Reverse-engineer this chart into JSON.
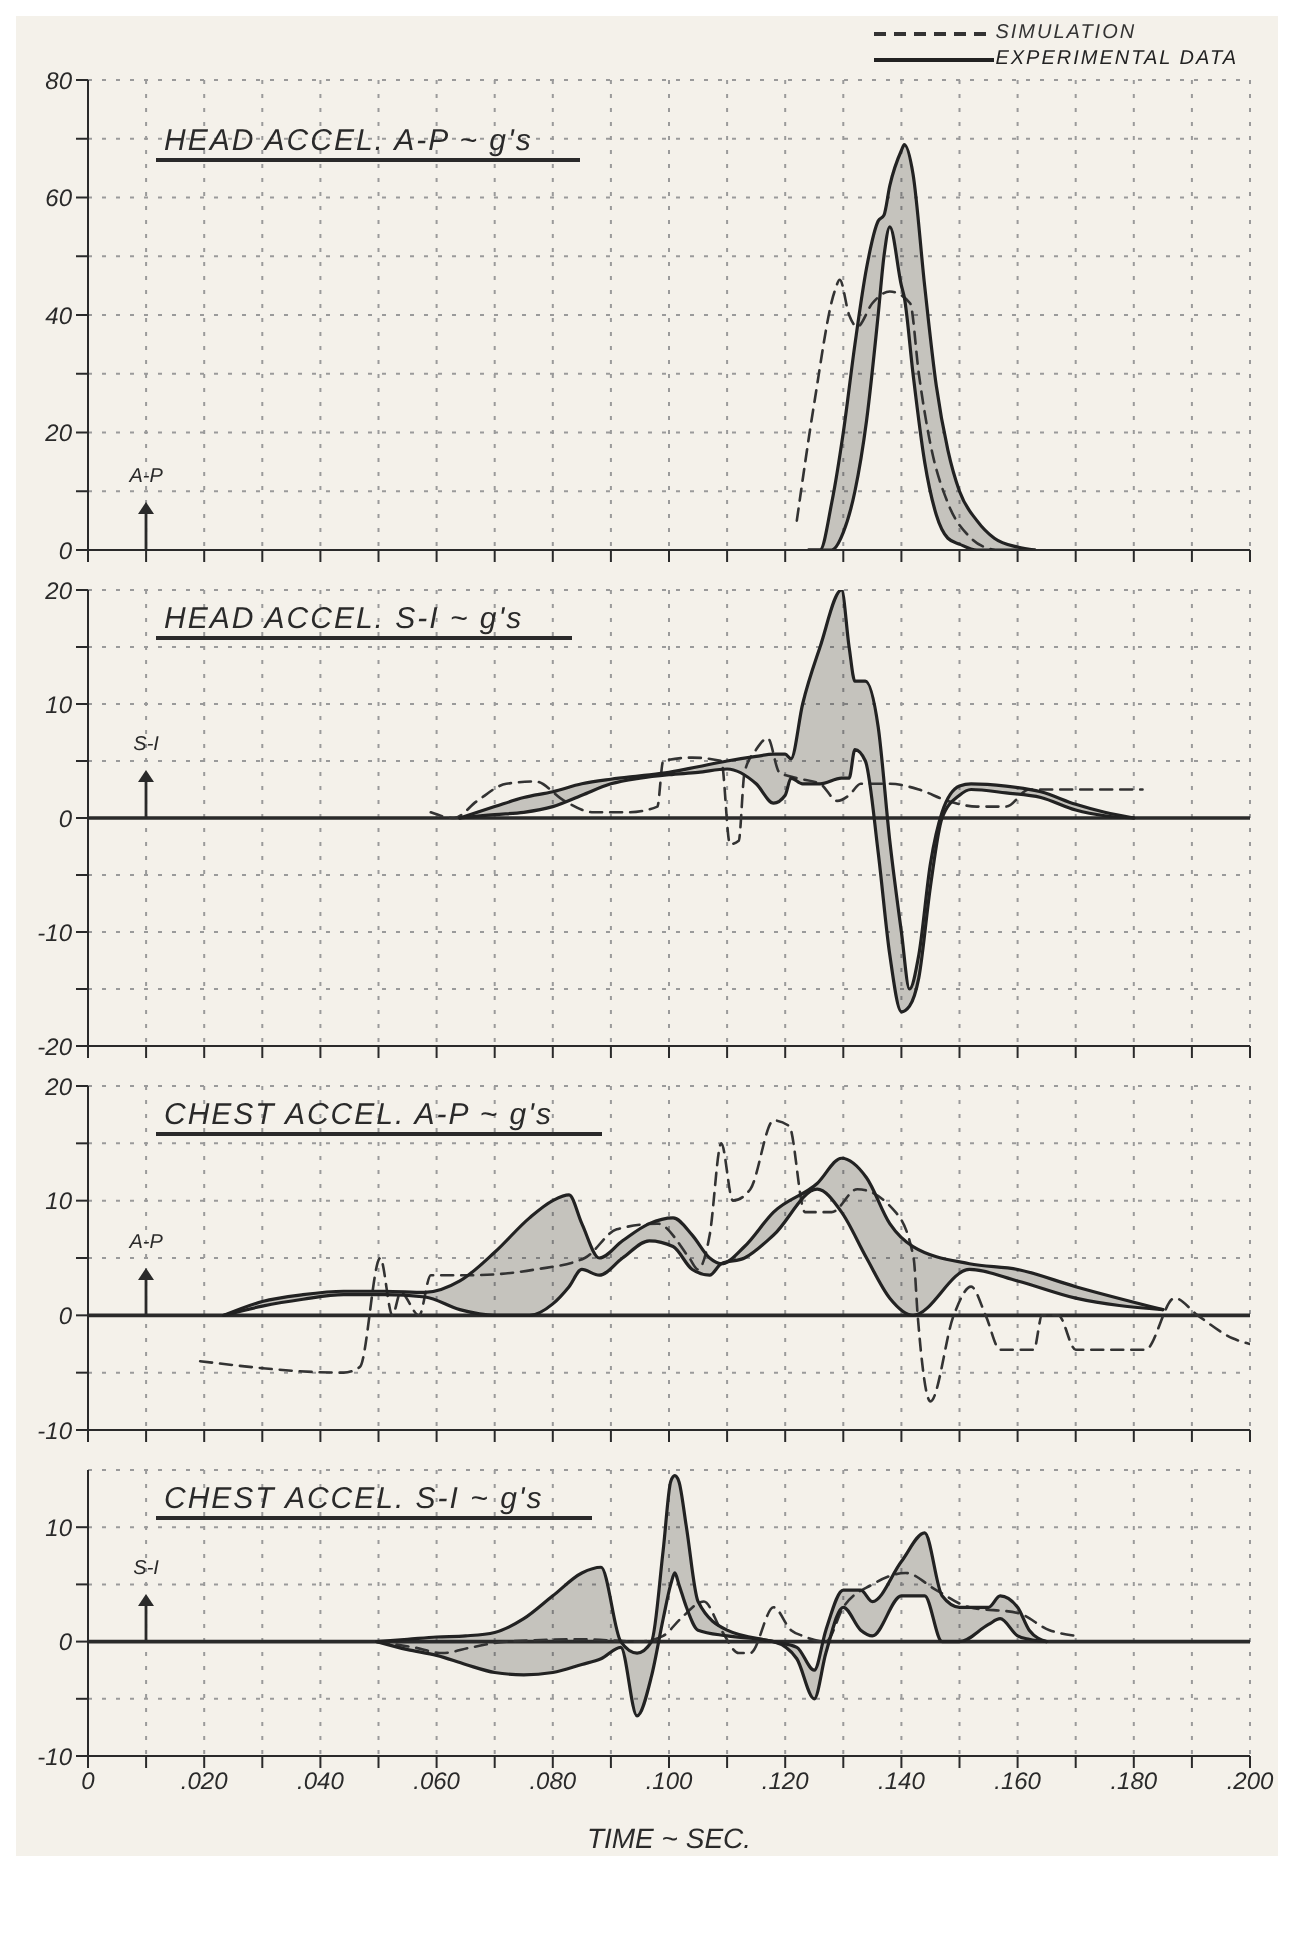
{
  "chart_data": [
    {
      "type": "line",
      "title": "HEAD ACCEL. A-P ~ g's",
      "annotations": [
        "A-P"
      ],
      "xlim": [
        0,
        0.2
      ],
      "xticks": [
        {
          "value": 0,
          "label": null
        },
        {
          "value": 0.01,
          "label": null
        },
        {
          "value": 0.02,
          "label": null
        },
        {
          "value": 0.03,
          "label": null
        },
        {
          "value": 0.04,
          "label": null
        },
        {
          "value": 0.05,
          "label": null
        },
        {
          "value": 0.06,
          "label": null
        },
        {
          "value": 0.07,
          "label": null
        },
        {
          "value": 0.08,
          "label": null
        },
        {
          "value": 0.09,
          "label": null
        },
        {
          "value": 0.1,
          "label": null
        },
        {
          "value": 0.11,
          "label": null
        },
        {
          "value": 0.12,
          "label": null
        },
        {
          "value": 0.13,
          "label": null
        },
        {
          "value": 0.14,
          "label": null
        },
        {
          "value": 0.15,
          "label": null
        },
        {
          "value": 0.16,
          "label": null
        },
        {
          "value": 0.17,
          "label": null
        },
        {
          "value": 0.18,
          "label": null
        },
        {
          "value": 0.19,
          "label": null
        },
        {
          "value": 0.2,
          "label": null
        }
      ],
      "ylim": [
        0,
        80
      ],
      "yticks": [
        0,
        {
          "value": 10,
          "label": null
        },
        20,
        {
          "value": 30,
          "label": null
        },
        40,
        {
          "value": 50,
          "label": null
        },
        60,
        {
          "value": 70,
          "label": null
        },
        80
      ],
      "grid": true,
      "tick_labels": "y",
      "legend": "top right",
      "marker": "none",
      "series": [
        {
          "name": "SIMULATION",
          "color": "#333333",
          "line_style": "dashed",
          "x": [
            0.122,
            0.125,
            0.1285,
            0.1294,
            0.131,
            0.1324,
            0.135,
            0.138,
            0.1415,
            0.143,
            0.145,
            0.148,
            0.152,
            0.156
          ],
          "values": [
            5,
            25,
            44,
            46,
            40,
            38,
            42,
            44,
            42,
            30,
            18,
            8,
            2,
            0
          ]
        },
        {
          "name": "EXPERIMENTAL DATA",
          "color": "#222222",
          "line_style": "solid",
          "x": [
            0.124,
            0.126,
            0.128,
            0.13,
            0.132,
            0.134,
            0.136,
            0.137,
            0.138,
            0.14,
            0.1405,
            0.142,
            0.144,
            0.146,
            0.148,
            0.15,
            0.153,
            0.156,
            0.16,
            0.163
          ],
          "values": [
            0,
            0,
            8,
            20,
            35,
            48,
            56,
            57,
            62,
            68,
            69,
            64,
            45,
            28,
            17,
            10,
            5,
            2,
            0.5,
            0
          ],
          "lower": [
            0,
            0,
            0,
            3,
            10,
            22,
            40,
            50,
            55,
            45,
            43,
            30,
            15,
            6,
            2,
            1,
            0,
            0,
            0,
            0
          ],
          "upper": [
            0,
            0,
            8,
            20,
            35,
            48,
            56,
            57,
            62,
            68,
            69,
            64,
            45,
            28,
            17,
            10,
            5,
            2,
            0.5,
            0
          ]
        },
        {
          "color": "#222222",
          "line_style": "solid",
          "x": [
            0.124,
            0.126,
            0.128,
            0.13,
            0.132,
            0.134,
            0.136,
            0.137,
            0.138,
            0.14,
            0.1405,
            0.142,
            0.144,
            0.146,
            0.148,
            0.15,
            0.153,
            0.156,
            0.16,
            0.163
          ],
          "values": [
            0,
            0,
            0,
            3,
            10,
            22,
            40,
            50,
            55,
            45,
            43,
            30,
            15,
            6,
            2,
            1,
            0,
            0,
            0,
            0
          ]
        }
      ]
    },
    {
      "type": "line",
      "title": "HEAD ACCEL. S-I ~ g's",
      "annotations": [
        "S-I"
      ],
      "xlim": [
        0,
        0.2
      ],
      "xticks": [
        {
          "value": 0,
          "label": null
        },
        {
          "value": 0.01,
          "label": null
        },
        {
          "value": 0.02,
          "label": null
        },
        {
          "value": 0.03,
          "label": null
        },
        {
          "value": 0.04,
          "label": null
        },
        {
          "value": 0.05,
          "label": null
        },
        {
          "value": 0.06,
          "label": null
        },
        {
          "value": 0.07,
          "label": null
        },
        {
          "value": 0.08,
          "label": null
        },
        {
          "value": 0.09,
          "label": null
        },
        {
          "value": 0.1,
          "label": null
        },
        {
          "value": 0.11,
          "label": null
        },
        {
          "value": 0.12,
          "label": null
        },
        {
          "value": 0.13,
          "label": null
        },
        {
          "value": 0.14,
          "label": null
        },
        {
          "value": 0.15,
          "label": null
        },
        {
          "value": 0.16,
          "label": null
        },
        {
          "value": 0.17,
          "label": null
        },
        {
          "value": 0.18,
          "label": null
        },
        {
          "value": 0.19,
          "label": null
        },
        {
          "value": 0.2,
          "label": null
        }
      ],
      "ylim": [
        -20,
        20
      ],
      "yticks": [
        -20,
        {
          "value": -15,
          "label": null
        },
        -10,
        {
          "value": -5,
          "label": null
        },
        0,
        {
          "value": 5,
          "label": null
        },
        10,
        {
          "value": 15,
          "label": null
        },
        20
      ],
      "grid": true,
      "tick_labels": "y",
      "marker": "none",
      "ref_lines": [
        {
          "axis": "y",
          "value": 0
        }
      ],
      "series": [
        {
          "color": "#333333",
          "line_style": "dashed",
          "x": [
            0.059,
            0.063,
            0.067,
            0.072,
            0.077,
            0.082,
            0.087,
            0.093,
            0.098,
            0.099,
            0.104,
            0.109,
            0.1105,
            0.112,
            0.113,
            0.115,
            0.117,
            0.119,
            0.122,
            0.126,
            0.129,
            0.131,
            0.133,
            0.138,
            0.143,
            0.148,
            0.153,
            0.158,
            0.162,
            0.1815
          ],
          "values": [
            0.5,
            0,
            1.5,
            3,
            3.2,
            1.5,
            0.5,
            0.5,
            1,
            5,
            5.3,
            5,
            -2.3,
            -2,
            4,
            6,
            7,
            4,
            3.5,
            3,
            1.5,
            2,
            3,
            3,
            2.5,
            1.5,
            1,
            1,
            2.5,
            2.5
          ]
        },
        {
          "color": "#222222",
          "line_style": "solid",
          "x": [
            0.064,
            0.07,
            0.075,
            0.08,
            0.085,
            0.09,
            0.095,
            0.1,
            0.105,
            0.11,
            0.115,
            0.118,
            0.12,
            0.121,
            0.123,
            0.126,
            0.1297,
            0.131,
            0.132,
            0.1338,
            0.136,
            0.138,
            0.14,
            0.1414,
            0.143,
            0.145,
            0.147,
            0.15,
            0.152,
            0.158,
            0.164,
            0.17,
            0.175,
            0.18
          ],
          "values": [
            0,
            1,
            1.8,
            2.3,
            3,
            3.4,
            3.7,
            4,
            4.5,
            5,
            5.4,
            5.6,
            5.6,
            5.2,
            10,
            15,
            20,
            15,
            12,
            12,
            8,
            -2,
            -10,
            -15,
            -12,
            -4,
            0.5,
            2.8,
            3,
            2.8,
            2.3,
            1.2,
            0.5,
            0
          ],
          "lower": [
            0,
            0.3,
            0.5,
            1,
            2,
            3,
            3.5,
            3.8,
            4,
            4.3,
            3,
            1.3,
            2,
            3.5,
            3,
            3,
            3.5,
            3.5,
            6,
            5,
            -3,
            -12,
            -17,
            -16.5,
            -14,
            -6,
            0,
            2,
            2.5,
            2.2,
            1.8,
            0.7,
            0.2,
            0
          ],
          "upper": [
            0,
            1,
            1.8,
            2.3,
            3,
            3.4,
            3.7,
            4,
            4.5,
            5,
            5.4,
            5.6,
            5.6,
            5.2,
            10,
            15,
            20,
            15,
            12,
            12,
            8,
            -2,
            -10,
            -15,
            -12,
            -4,
            0.5,
            2.8,
            3,
            2.8,
            2.3,
            1.2,
            0.5,
            0
          ]
        },
        {
          "color": "#222222",
          "line_style": "solid",
          "x": [
            0.064,
            0.07,
            0.075,
            0.08,
            0.085,
            0.09,
            0.095,
            0.1,
            0.105,
            0.11,
            0.115,
            0.118,
            0.12,
            0.121,
            0.123,
            0.126,
            0.1297,
            0.131,
            0.132,
            0.1338,
            0.136,
            0.138,
            0.14,
            0.1414,
            0.143,
            0.145,
            0.147,
            0.15,
            0.152,
            0.158,
            0.164,
            0.17,
            0.175,
            0.18
          ],
          "values": [
            0,
            0.3,
            0.5,
            1,
            2,
            3,
            3.5,
            3.8,
            4,
            4.3,
            3,
            1.3,
            2,
            3.5,
            3,
            3,
            3.5,
            3.5,
            6,
            5,
            -3,
            -12,
            -17,
            -16.5,
            -14,
            -6,
            0,
            2,
            2.5,
            2.2,
            1.8,
            0.7,
            0.2,
            0
          ]
        }
      ]
    },
    {
      "type": "line",
      "title": "CHEST ACCEL. A-P ~ g's",
      "annotations": [
        "A-P"
      ],
      "xlim": [
        0,
        0.2
      ],
      "xticks": [
        {
          "value": 0,
          "label": null
        },
        {
          "value": 0.01,
          "label": null
        },
        {
          "value": 0.02,
          "label": null
        },
        {
          "value": 0.03,
          "label": null
        },
        {
          "value": 0.04,
          "label": null
        },
        {
          "value": 0.05,
          "label": null
        },
        {
          "value": 0.06,
          "label": null
        },
        {
          "value": 0.07,
          "label": null
        },
        {
          "value": 0.08,
          "label": null
        },
        {
          "value": 0.09,
          "label": null
        },
        {
          "value": 0.1,
          "label": null
        },
        {
          "value": 0.11,
          "label": null
        },
        {
          "value": 0.12,
          "label": null
        },
        {
          "value": 0.13,
          "label": null
        },
        {
          "value": 0.14,
          "label": null
        },
        {
          "value": 0.15,
          "label": null
        },
        {
          "value": 0.16,
          "label": null
        },
        {
          "value": 0.17,
          "label": null
        },
        {
          "value": 0.18,
          "label": null
        },
        {
          "value": 0.19,
          "label": null
        },
        {
          "value": 0.2,
          "label": null
        }
      ],
      "ylim": [
        -10,
        20
      ],
      "yticks": [
        -10,
        {
          "value": -5,
          "label": null
        },
        0,
        {
          "value": 5,
          "label": null
        },
        10,
        {
          "value": 15,
          "label": null
        },
        20
      ],
      "grid": true,
      "tick_labels": "y",
      "marker": "none",
      "ref_lines": [
        {
          "axis": "y",
          "value": 0
        }
      ],
      "series": [
        {
          "color": "#333333",
          "line_style": "dashed",
          "x": [
            0.0193,
            0.044,
            0.0468,
            0.0503,
            0.0524,
            0.0538,
            0.057,
            0.059,
            0.066,
            0.077,
            0.0855,
            0.091,
            0.098,
            0.1035,
            0.105,
            0.107,
            0.109,
            0.111,
            0.114,
            0.118,
            0.1207,
            0.1234,
            0.128,
            0.1324,
            0.139,
            0.1421,
            0.1428,
            0.145,
            0.149,
            0.152,
            0.1545,
            0.157,
            0.1628,
            0.1642,
            0.167,
            0.17,
            0.182,
            0.187,
            0.191,
            0.197,
            0.2
          ],
          "values": [
            -4,
            -5,
            -4.5,
            5,
            0,
            2,
            0,
            3.5,
            3.5,
            4,
            5,
            7.5,
            8,
            5,
            4,
            7,
            15,
            10,
            11,
            17,
            16.5,
            9,
            9,
            11,
            9,
            5,
            0,
            -7.5,
            0,
            2.5,
            0,
            -3,
            -3,
            0,
            0,
            -3,
            -3,
            1.5,
            0,
            -2,
            -2.5
          ]
        },
        {
          "color": "#222222",
          "line_style": "solid",
          "x": [
            0.0234,
            0.03,
            0.037,
            0.044,
            0.051,
            0.058,
            0.064,
            0.07,
            0.076,
            0.08,
            0.0828,
            0.085,
            0.088,
            0.092,
            0.0966,
            0.1007,
            0.104,
            0.107,
            0.109,
            0.113,
            0.118,
            0.1255,
            0.1297,
            0.134,
            0.138,
            0.142,
            0.1517,
            0.16,
            0.17,
            0.185
          ],
          "values": [
            0,
            1.2,
            1.8,
            2.1,
            2.1,
            2,
            3,
            5.5,
            8.5,
            10,
            10.5,
            8,
            5,
            6.5,
            8,
            8.5,
            7,
            5,
            4.5,
            6,
            9,
            11.5,
            13.7,
            12,
            8,
            6,
            4.5,
            4,
            2.5,
            0.5
          ],
          "lower": [
            0,
            0.8,
            1.4,
            1.8,
            1.8,
            1.6,
            0.5,
            0,
            0,
            1,
            2.5,
            4,
            3.5,
            5,
            6.5,
            6,
            4,
            3.5,
            4.5,
            5,
            7,
            11,
            9,
            5,
            1.5,
            0,
            4,
            3,
            1.5,
            0.5
          ],
          "upper": [
            0,
            1.2,
            1.8,
            2.1,
            2.1,
            2,
            3,
            5.5,
            8.5,
            10,
            10.5,
            8,
            5,
            6.5,
            8,
            8.5,
            7,
            5,
            4.5,
            6,
            9,
            11.5,
            13.7,
            12,
            8,
            6,
            4.5,
            4,
            2.5,
            0.5
          ]
        },
        {
          "color": "#222222",
          "line_style": "solid",
          "x": [
            0.0234,
            0.03,
            0.037,
            0.044,
            0.051,
            0.058,
            0.064,
            0.07,
            0.076,
            0.08,
            0.0828,
            0.085,
            0.088,
            0.092,
            0.0966,
            0.1007,
            0.104,
            0.107,
            0.109,
            0.113,
            0.118,
            0.1255,
            0.1297,
            0.134,
            0.138,
            0.142,
            0.1517,
            0.16,
            0.17,
            0.185
          ],
          "values": [
            0,
            0.8,
            1.4,
            1.8,
            1.8,
            1.6,
            0.5,
            0,
            0,
            1,
            2.5,
            4,
            3.5,
            5,
            6.5,
            6,
            4,
            3.5,
            4.5,
            5,
            7,
            11,
            9,
            5,
            1.5,
            0,
            4,
            3,
            1.5,
            0.5
          ]
        }
      ]
    },
    {
      "type": "line",
      "title": "CHEST ACCEL. S-I ~ g's",
      "annotations": [
        "S-I"
      ],
      "xlabel": "TIME ~ SEC.",
      "xlim": [
        0,
        0.2
      ],
      "xticks": [
        0,
        {
          "value": 0.01,
          "label": null
        },
        {
          "value": 0.02,
          "label": ".020"
        },
        {
          "value": 0.03,
          "label": null
        },
        {
          "value": 0.04,
          "label": ".040"
        },
        {
          "value": 0.05,
          "label": null
        },
        {
          "value": 0.06,
          "label": ".060"
        },
        {
          "value": 0.07,
          "label": null
        },
        {
          "value": 0.08,
          "label": ".080"
        },
        {
          "value": 0.09,
          "label": null
        },
        {
          "value": 0.1,
          "label": ".100"
        },
        {
          "value": 0.11,
          "label": null
        },
        {
          "value": 0.12,
          "label": ".120"
        },
        {
          "value": 0.13,
          "label": null
        },
        {
          "value": 0.14,
          "label": ".140"
        },
        {
          "value": 0.15,
          "label": null
        },
        {
          "value": 0.16,
          "label": ".160"
        },
        {
          "value": 0.17,
          "label": null
        },
        {
          "value": 0.18,
          "label": ".180"
        },
        {
          "value": 0.19,
          "label": null
        },
        {
          "value": 0.2,
          "label": ".200"
        }
      ],
      "ylim": [
        -10,
        15
      ],
      "yticks": [
        -10,
        {
          "value": -5,
          "label": null
        },
        0,
        {
          "value": 5,
          "label": null
        },
        10
      ],
      "grid": true,
      "marker": "none",
      "ref_lines": [
        {
          "axis": "y",
          "value": 0
        }
      ],
      "series": [
        {
          "color": "#333333",
          "line_style": "dashed",
          "x": [
            0.0497,
            0.056,
            0.061,
            0.066,
            0.072,
            0.085,
            0.095,
            0.099,
            0.102,
            0.106,
            0.109,
            0.112,
            0.114,
            0.118,
            0.121,
            0.123,
            0.127,
            0.13,
            0.135,
            0.1407,
            0.146,
            0.1517,
            0.16,
            0.1655,
            0.17
          ],
          "values": [
            0,
            -0.5,
            -1,
            -0.5,
            0,
            0.2,
            0,
            0.5,
            2,
            3.5,
            1,
            -1,
            -1,
            3,
            1,
            0.5,
            0,
            3,
            5,
            6,
            4.5,
            3,
            2.5,
            1,
            0.5
          ]
        },
        {
          "color": "#222222",
          "line_style": "solid",
          "x": [
            0.0497,
            0.055,
            0.06,
            0.065,
            0.07,
            0.075,
            0.08,
            0.085,
            0.0883,
            0.0917,
            0.0945,
            0.097,
            0.099,
            0.1003,
            0.101,
            0.1017,
            0.103,
            0.105,
            0.11,
            0.118,
            0.122,
            0.125,
            0.127,
            0.13,
            0.133,
            0.135,
            0.14,
            0.144,
            0.147,
            0.15,
            0.155,
            0.157,
            0.16,
            0.162,
            0.165
          ],
          "values": [
            0,
            0.2,
            0.4,
            0.5,
            0.8,
            2,
            4,
            6,
            6.5,
            0,
            -1,
            0,
            8,
            14,
            14.5,
            14,
            10,
            3.5,
            1,
            0,
            -0.5,
            -2.5,
            1,
            4.5,
            4.5,
            3.5,
            7,
            9.5,
            4,
            3,
            3,
            4,
            3,
            1,
            0
          ],
          "lower": [
            0,
            -0.7,
            -1.2,
            -2,
            -2.7,
            -2.9,
            -2.7,
            -2,
            -1.5,
            -0.5,
            -6.5,
            -3,
            2,
            5,
            6,
            5,
            3,
            1,
            0.5,
            0,
            -1.5,
            -5,
            -1,
            3,
            1,
            0.5,
            4,
            4,
            0,
            0,
            1.5,
            2,
            0.5,
            0.2,
            0
          ],
          "upper": [
            0,
            0.2,
            0.4,
            0.5,
            0.8,
            2,
            4,
            6,
            6.5,
            0,
            -1,
            0,
            8,
            14,
            14.5,
            14,
            10,
            3.5,
            1,
            0,
            -0.5,
            -2.5,
            1,
            4.5,
            4.5,
            3.5,
            7,
            9.5,
            4,
            3,
            3,
            4,
            3,
            1,
            0
          ]
        },
        {
          "color": "#222222",
          "line_style": "solid",
          "x": [
            0.0497,
            0.055,
            0.06,
            0.065,
            0.07,
            0.075,
            0.08,
            0.085,
            0.0883,
            0.0917,
            0.0945,
            0.097,
            0.099,
            0.1003,
            0.101,
            0.1017,
            0.103,
            0.105,
            0.11,
            0.118,
            0.122,
            0.125,
            0.127,
            0.13,
            0.133,
            0.135,
            0.14,
            0.144,
            0.147,
            0.15,
            0.155,
            0.157,
            0.16,
            0.162,
            0.165
          ],
          "values": [
            0,
            -0.7,
            -1.2,
            -2,
            -2.7,
            -2.9,
            -2.7,
            -2,
            -1.5,
            -0.5,
            -6.5,
            -3,
            2,
            5,
            6,
            5,
            3,
            1,
            0.5,
            0,
            -1.5,
            -5,
            -1,
            3,
            1,
            0.5,
            4,
            4,
            0,
            0,
            1.5,
            2,
            0.5,
            0.2,
            0
          ]
        }
      ]
    }
  ]
}
